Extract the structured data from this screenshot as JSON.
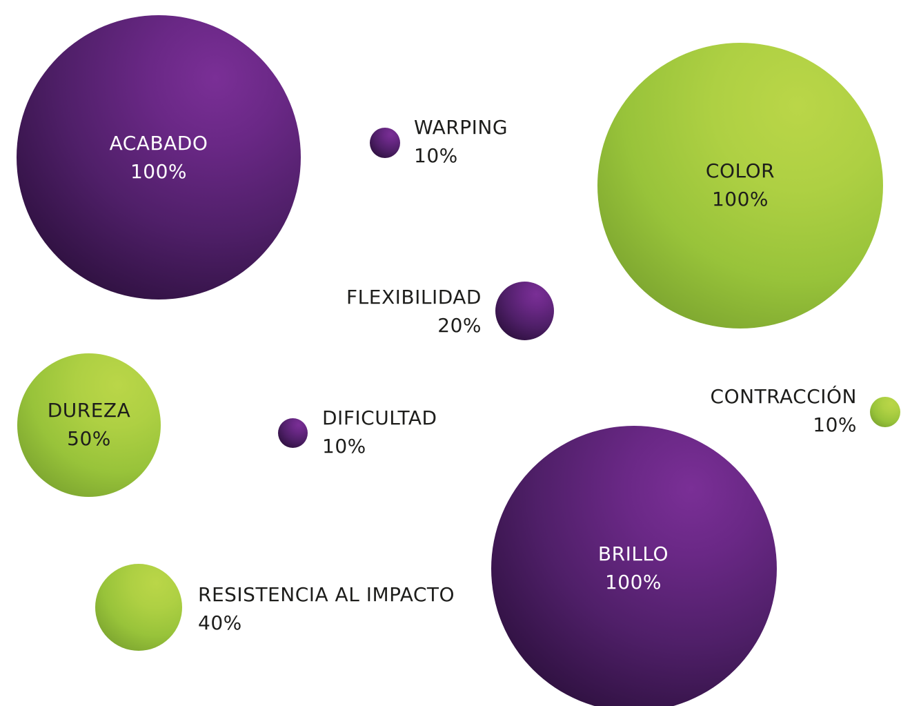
{
  "colors": {
    "purple": "#6a2886",
    "green": "#a8cc40",
    "label_dark": "#1d1d1b",
    "label_light": "#ffffff"
  },
  "bubbles": [
    {
      "id": "acabado",
      "name": "ACABADO",
      "percent": "100%",
      "value": 100,
      "color": "purple"
    },
    {
      "id": "warping",
      "name": "WARPING",
      "percent": "10%",
      "value": 10,
      "color": "purple"
    },
    {
      "id": "color",
      "name": "COLOR",
      "percent": "100%",
      "value": 100,
      "color": "green"
    },
    {
      "id": "flexibilidad",
      "name": "FLEXIBILIDAD",
      "percent": "20%",
      "value": 20,
      "color": "purple"
    },
    {
      "id": "dureza",
      "name": "DUREZA",
      "percent": "50%",
      "value": 50,
      "color": "green"
    },
    {
      "id": "dificultad",
      "name": "DIFICULTAD",
      "percent": "10%",
      "value": 10,
      "color": "purple"
    },
    {
      "id": "contraccion",
      "name": "CONTRACCIÓN",
      "percent": "10%",
      "value": 10,
      "color": "green"
    },
    {
      "id": "brillo",
      "name": "BRILLO",
      "percent": "100%",
      "value": 100,
      "color": "purple"
    },
    {
      "id": "resistencia",
      "name": "RESISTENCIA AL IMPACTO",
      "percent": "40%",
      "value": 40,
      "color": "green"
    }
  ]
}
